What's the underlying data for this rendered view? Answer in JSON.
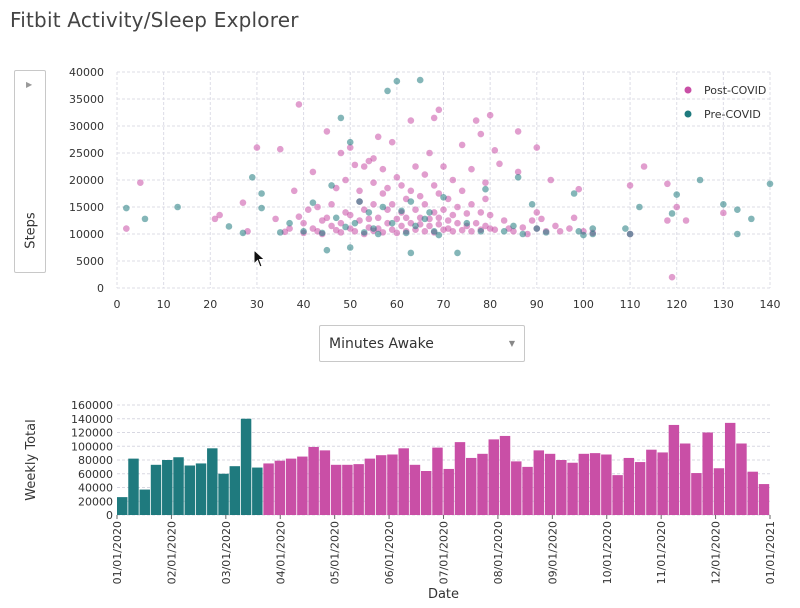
{
  "app": {
    "title": "Fitbit Activity/Sleep Explorer"
  },
  "controls": {
    "y_select": {
      "value": "Steps"
    },
    "x_select": {
      "value": "Minutes Awake"
    }
  },
  "colors": {
    "post": "#c94fa6",
    "pre": "#1f7a7e"
  },
  "chart_data": [
    {
      "type": "scatter",
      "xlim": [
        0,
        140
      ],
      "ylim": [
        0,
        40000
      ],
      "xticks": [
        0,
        10,
        20,
        30,
        40,
        50,
        60,
        70,
        80,
        90,
        100,
        110,
        120,
        130,
        140
      ],
      "yticks": [
        0,
        5000,
        10000,
        15000,
        20000,
        25000,
        30000,
        35000,
        40000
      ],
      "grid": true,
      "legend_position": "top-right",
      "series": [
        {
          "name": "Post-COVID",
          "color": "#c94fa6",
          "points": [
            [
              2,
              11000
            ],
            [
              5,
              19500
            ],
            [
              21,
              12800
            ],
            [
              22,
              13500
            ],
            [
              27,
              15800
            ],
            [
              28,
              10500
            ],
            [
              30,
              26000
            ],
            [
              34,
              12800
            ],
            [
              35,
              25700
            ],
            [
              36,
              10400
            ],
            [
              37,
              11000
            ],
            [
              38,
              18000
            ],
            [
              39,
              34000
            ],
            [
              39,
              13200
            ],
            [
              40,
              12000
            ],
            [
              40,
              10200
            ],
            [
              41,
              14500
            ],
            [
              42,
              21500
            ],
            [
              42,
              11000
            ],
            [
              43,
              10500
            ],
            [
              43,
              15000
            ],
            [
              44,
              12500
            ],
            [
              44,
              10000
            ],
            [
              45,
              13000
            ],
            [
              45,
              29000
            ],
            [
              46,
              11500
            ],
            [
              46,
              15500
            ],
            [
              47,
              10700
            ],
            [
              47,
              18500
            ],
            [
              48,
              12000
            ],
            [
              48,
              25000
            ],
            [
              48,
              10300
            ],
            [
              49,
              14000
            ],
            [
              49,
              20000
            ],
            [
              50,
              11000
            ],
            [
              50,
              13500
            ],
            [
              50,
              26000
            ],
            [
              51,
              10500
            ],
            [
              51,
              22800
            ],
            [
              52,
              12500
            ],
            [
              52,
              18000
            ],
            [
              52,
              16000
            ],
            [
              53,
              10000
            ],
            [
              53,
              14500
            ],
            [
              53,
              22500
            ],
            [
              54,
              11200
            ],
            [
              54,
              23500
            ],
            [
              54,
              12800
            ],
            [
              55,
              10600
            ],
            [
              55,
              19500
            ],
            [
              55,
              15500
            ],
            [
              55,
              24000
            ],
            [
              56,
              28000
            ],
            [
              56,
              11000
            ],
            [
              56,
              13000
            ],
            [
              57,
              17500
            ],
            [
              57,
              10300
            ],
            [
              57,
              22000
            ],
            [
              58,
              12000
            ],
            [
              58,
              14500
            ],
            [
              58,
              18500
            ],
            [
              59,
              15500
            ],
            [
              59,
              10800
            ],
            [
              59,
              27000
            ],
            [
              60,
              12800
            ],
            [
              60,
              20500
            ],
            [
              60,
              10200
            ],
            [
              61,
              11500
            ],
            [
              61,
              14000
            ],
            [
              61,
              19000
            ],
            [
              62,
              10500
            ],
            [
              62,
              16500
            ],
            [
              62,
              13000
            ],
            [
              63,
              12000
            ],
            [
              63,
              18000
            ],
            [
              63,
              31000
            ],
            [
              64,
              10800
            ],
            [
              64,
              14500
            ],
            [
              64,
              22500
            ],
            [
              65,
              11800
            ],
            [
              65,
              17000
            ],
            [
              65,
              13000
            ],
            [
              66,
              10500
            ],
            [
              66,
              15500
            ],
            [
              66,
              21000
            ],
            [
              67,
              11500
            ],
            [
              67,
              12800
            ],
            [
              67,
              25000
            ],
            [
              68,
              10300
            ],
            [
              68,
              14000
            ],
            [
              68,
              19000
            ],
            [
              68,
              31500
            ],
            [
              69,
              11800
            ],
            [
              69,
              17500
            ],
            [
              69,
              13000
            ],
            [
              69,
              33000
            ],
            [
              70,
              10800
            ],
            [
              70,
              22500
            ],
            [
              70,
              14500
            ],
            [
              71,
              11000
            ],
            [
              71,
              16500
            ],
            [
              71,
              12500
            ],
            [
              72,
              13500
            ],
            [
              72,
              10500
            ],
            [
              72,
              20000
            ],
            [
              73,
              12000
            ],
            [
              73,
              15000
            ],
            [
              74,
              10700
            ],
            [
              74,
              18000
            ],
            [
              74,
              26500
            ],
            [
              75,
              11500
            ],
            [
              75,
              13800
            ],
            [
              76,
              10500
            ],
            [
              76,
              15500
            ],
            [
              76,
              22000
            ],
            [
              77,
              31000
            ],
            [
              77,
              12000
            ],
            [
              78,
              10800
            ],
            [
              78,
              14000
            ],
            [
              78,
              28500
            ],
            [
              79,
              11500
            ],
            [
              79,
              16500
            ],
            [
              79,
              19500
            ],
            [
              80,
              32000
            ],
            [
              80,
              11000
            ],
            [
              80,
              13500
            ],
            [
              81,
              25500
            ],
            [
              81,
              10800
            ],
            [
              82,
              23000
            ],
            [
              83,
              12500
            ],
            [
              84,
              11000
            ],
            [
              85,
              10500
            ],
            [
              86,
              29000
            ],
            [
              86,
              21500
            ],
            [
              87,
              11200
            ],
            [
              88,
              10000
            ],
            [
              89,
              12500
            ],
            [
              90,
              26000
            ],
            [
              90,
              14000
            ],
            [
              90,
              11000
            ],
            [
              91,
              12800
            ],
            [
              92,
              10500
            ],
            [
              93,
              20000
            ],
            [
              94,
              11500
            ],
            [
              95,
              10500
            ],
            [
              97,
              11000
            ],
            [
              98,
              13000
            ],
            [
              99,
              18300
            ],
            [
              100,
              10500
            ],
            [
              102,
              10200
            ],
            [
              110,
              19000
            ],
            [
              110,
              10000
            ],
            [
              113,
              22500
            ],
            [
              118,
              19300
            ],
            [
              118,
              12500
            ],
            [
              119,
              2000
            ],
            [
              120,
              15000
            ],
            [
              122,
              12500
            ],
            [
              130,
              13900
            ]
          ]
        },
        {
          "name": "Pre-COVID",
          "color": "#1f7a7e",
          "points": [
            [
              2,
              14800
            ],
            [
              6,
              12800
            ],
            [
              13,
              15000
            ],
            [
              24,
              11400
            ],
            [
              27,
              10200
            ],
            [
              29,
              20500
            ],
            [
              31,
              14800
            ],
            [
              31,
              17500
            ],
            [
              35,
              10300
            ],
            [
              37,
              12000
            ],
            [
              40,
              10500
            ],
            [
              42,
              15800
            ],
            [
              44,
              10200
            ],
            [
              45,
              7000
            ],
            [
              46,
              19000
            ],
            [
              47,
              13000
            ],
            [
              48,
              31500
            ],
            [
              49,
              11300
            ],
            [
              50,
              7500
            ],
            [
              50,
              27000
            ],
            [
              51,
              12000
            ],
            [
              52,
              16000
            ],
            [
              53,
              10300
            ],
            [
              54,
              14000
            ],
            [
              55,
              11000
            ],
            [
              56,
              10000
            ],
            [
              57,
              15000
            ],
            [
              58,
              36500
            ],
            [
              59,
              12000
            ],
            [
              60,
              38300
            ],
            [
              61,
              14300
            ],
            [
              62,
              10200
            ],
            [
              63,
              16000
            ],
            [
              63,
              6500
            ],
            [
              64,
              11500
            ],
            [
              65,
              38500
            ],
            [
              66,
              12800
            ],
            [
              67,
              14000
            ],
            [
              68,
              10500
            ],
            [
              69,
              9800
            ],
            [
              70,
              16800
            ],
            [
              73,
              6500
            ],
            [
              75,
              12000
            ],
            [
              78,
              10500
            ],
            [
              79,
              18300
            ],
            [
              83,
              10500
            ],
            [
              85,
              11500
            ],
            [
              86,
              20500
            ],
            [
              87,
              10000
            ],
            [
              89,
              15500
            ],
            [
              90,
              11000
            ],
            [
              92,
              10300
            ],
            [
              98,
              17500
            ],
            [
              99,
              10500
            ],
            [
              100,
              9800
            ],
            [
              102,
              11000
            ],
            [
              102,
              10000
            ],
            [
              109,
              11000
            ],
            [
              110,
              10000
            ],
            [
              112,
              15000
            ],
            [
              119,
              13800
            ],
            [
              120,
              17300
            ],
            [
              125,
              20000
            ],
            [
              130,
              15500
            ],
            [
              133,
              14500
            ],
            [
              133,
              10000
            ],
            [
              136,
              12800
            ],
            [
              140,
              19300
            ]
          ]
        }
      ],
      "legend": [
        {
          "label": "Post-COVID",
          "color": "#c94fa6"
        },
        {
          "label": "Pre-COVID",
          "color": "#1f7a7e"
        }
      ]
    },
    {
      "type": "bar",
      "title": "",
      "xlabel": "Date",
      "ylabel": "Weekly Total",
      "ylim": [
        0,
        160000
      ],
      "yticks": [
        0,
        20000,
        40000,
        60000,
        80000,
        100000,
        120000,
        140000,
        160000
      ],
      "date_ticks": [
        "01/01/2020",
        "02/01/2020",
        "03/01/2020",
        "04/01/2020",
        "05/01/2020",
        "06/01/2020",
        "07/01/2020",
        "08/01/2020",
        "09/01/2020",
        "10/01/2020",
        "11/01/2020",
        "12/01/2020",
        "01/01/2021"
      ],
      "values": [
        26000,
        82000,
        37000,
        73000,
        80000,
        84000,
        72000,
        75000,
        97000,
        60000,
        71000,
        140000,
        69000,
        75000,
        79000,
        82000,
        85000,
        99000,
        94000,
        73000,
        73000,
        74000,
        82000,
        87000,
        88000,
        97000,
        73000,
        64000,
        98000,
        67000,
        106000,
        83000,
        89000,
        110000,
        115000,
        78000,
        70000,
        94000,
        89000,
        80000,
        76000,
        89000,
        90000,
        88000,
        58000,
        83000,
        77000,
        95000,
        91000,
        131000,
        104000,
        61000,
        120000,
        68000,
        134000,
        104000,
        63000,
        45000
      ],
      "pre_covid_count": 13,
      "series_colors": {
        "pre": "#1f7a7e",
        "post": "#c94fa6"
      }
    }
  ]
}
